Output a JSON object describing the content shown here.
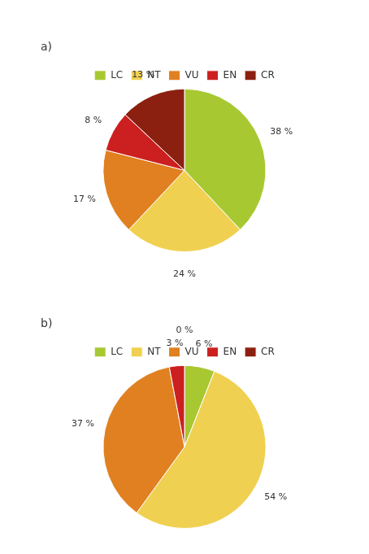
{
  "chart_data": [
    {
      "type": "pie",
      "title": "a)",
      "categories": [
        "LC",
        "NT",
        "VU",
        "EN",
        "CR"
      ],
      "values": [
        38,
        24,
        17,
        8,
        13
      ],
      "value_labels": [
        "38 %",
        "24 %",
        "17 %",
        "8 %",
        "13 %"
      ],
      "colors": [
        "#a8c832",
        "#f0d050",
        "#e08020",
        "#cc2020",
        "#8b2010"
      ],
      "legend": "top",
      "data_labels": true
    },
    {
      "type": "pie",
      "title": "b)",
      "categories": [
        "LC",
        "NT",
        "VU",
        "EN",
        "CR"
      ],
      "values": [
        6,
        54,
        37,
        3,
        0
      ],
      "value_labels": [
        "6 %",
        "54 %",
        "37 %",
        "3 %",
        "0 %"
      ],
      "colors": [
        "#a8c832",
        "#f0d050",
        "#e08020",
        "#cc2020",
        "#8b2010"
      ],
      "legend": "top",
      "data_labels": true
    }
  ]
}
